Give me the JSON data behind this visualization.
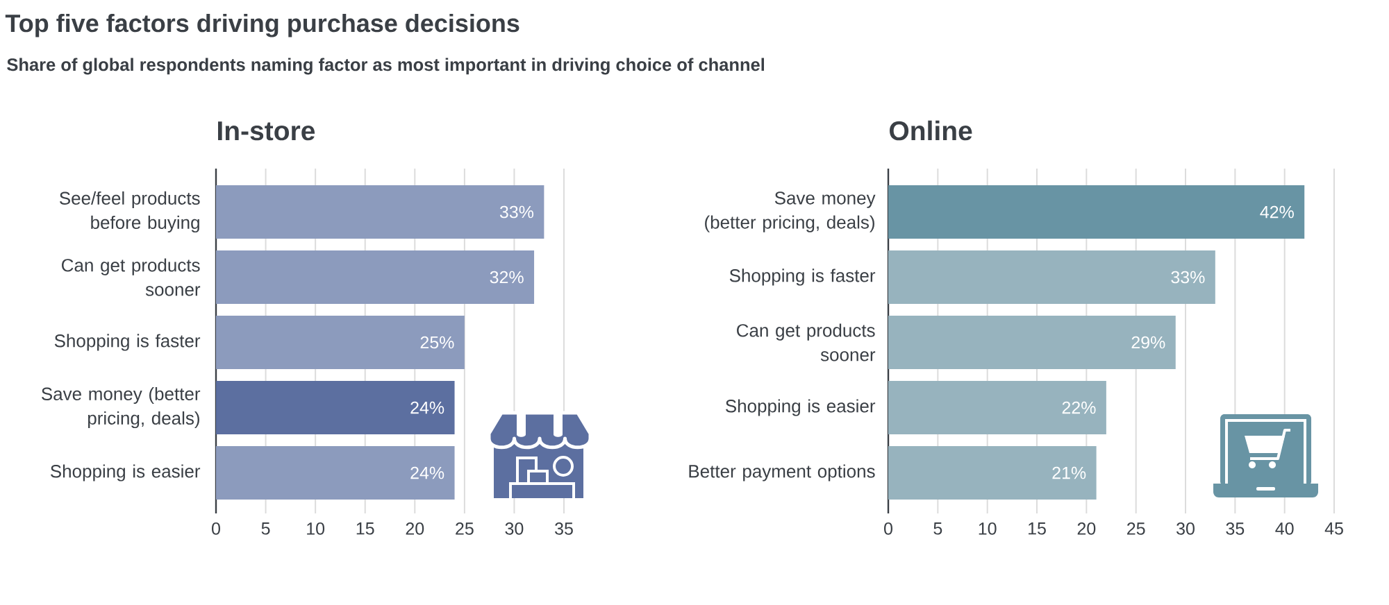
{
  "chart_data": [
    {
      "type": "other",
      "title": "Top five factors driving purchase decisions",
      "subtitle": "Share of global respondents naming factor as most important in driving choice of channel"
    },
    {
      "type": "bar",
      "orientation": "horizontal",
      "title": "In-store",
      "categories": [
        "See/feel products\nbefore buying",
        "Can get products\nsooner",
        "Shopping is faster",
        "Save money (better\npricing, deals)",
        "Shopping is easier"
      ],
      "values": [
        33,
        32,
        25,
        24,
        24
      ],
      "colors": [
        "#8c9bbd",
        "#8c9bbd",
        "#8c9bbd",
        "#5c6fa0",
        "#8c9bbd"
      ],
      "value_labels": [
        "33%",
        "32%",
        "25%",
        "24%",
        "24%"
      ],
      "xlim": [
        0,
        35
      ],
      "xticks": [
        0,
        5,
        10,
        15,
        20,
        25,
        30,
        35
      ],
      "grid": "x"
    },
    {
      "type": "bar",
      "orientation": "horizontal",
      "title": "Online",
      "categories": [
        "Save money\n(better pricing, deals)",
        "Shopping is faster",
        "Can get products\nsooner",
        "Shopping is easier",
        "Better payment options"
      ],
      "values": [
        42,
        33,
        29,
        22,
        21
      ],
      "colors": [
        "#6894a4",
        "#97b3be",
        "#97b3be",
        "#97b3be",
        "#97b3be"
      ],
      "value_labels": [
        "42%",
        "33%",
        "29%",
        "22%",
        "21%"
      ],
      "xlim": [
        0,
        45
      ],
      "xticks": [
        0,
        5,
        10,
        15,
        20,
        25,
        30,
        35,
        40,
        45
      ],
      "grid": "x"
    }
  ]
}
